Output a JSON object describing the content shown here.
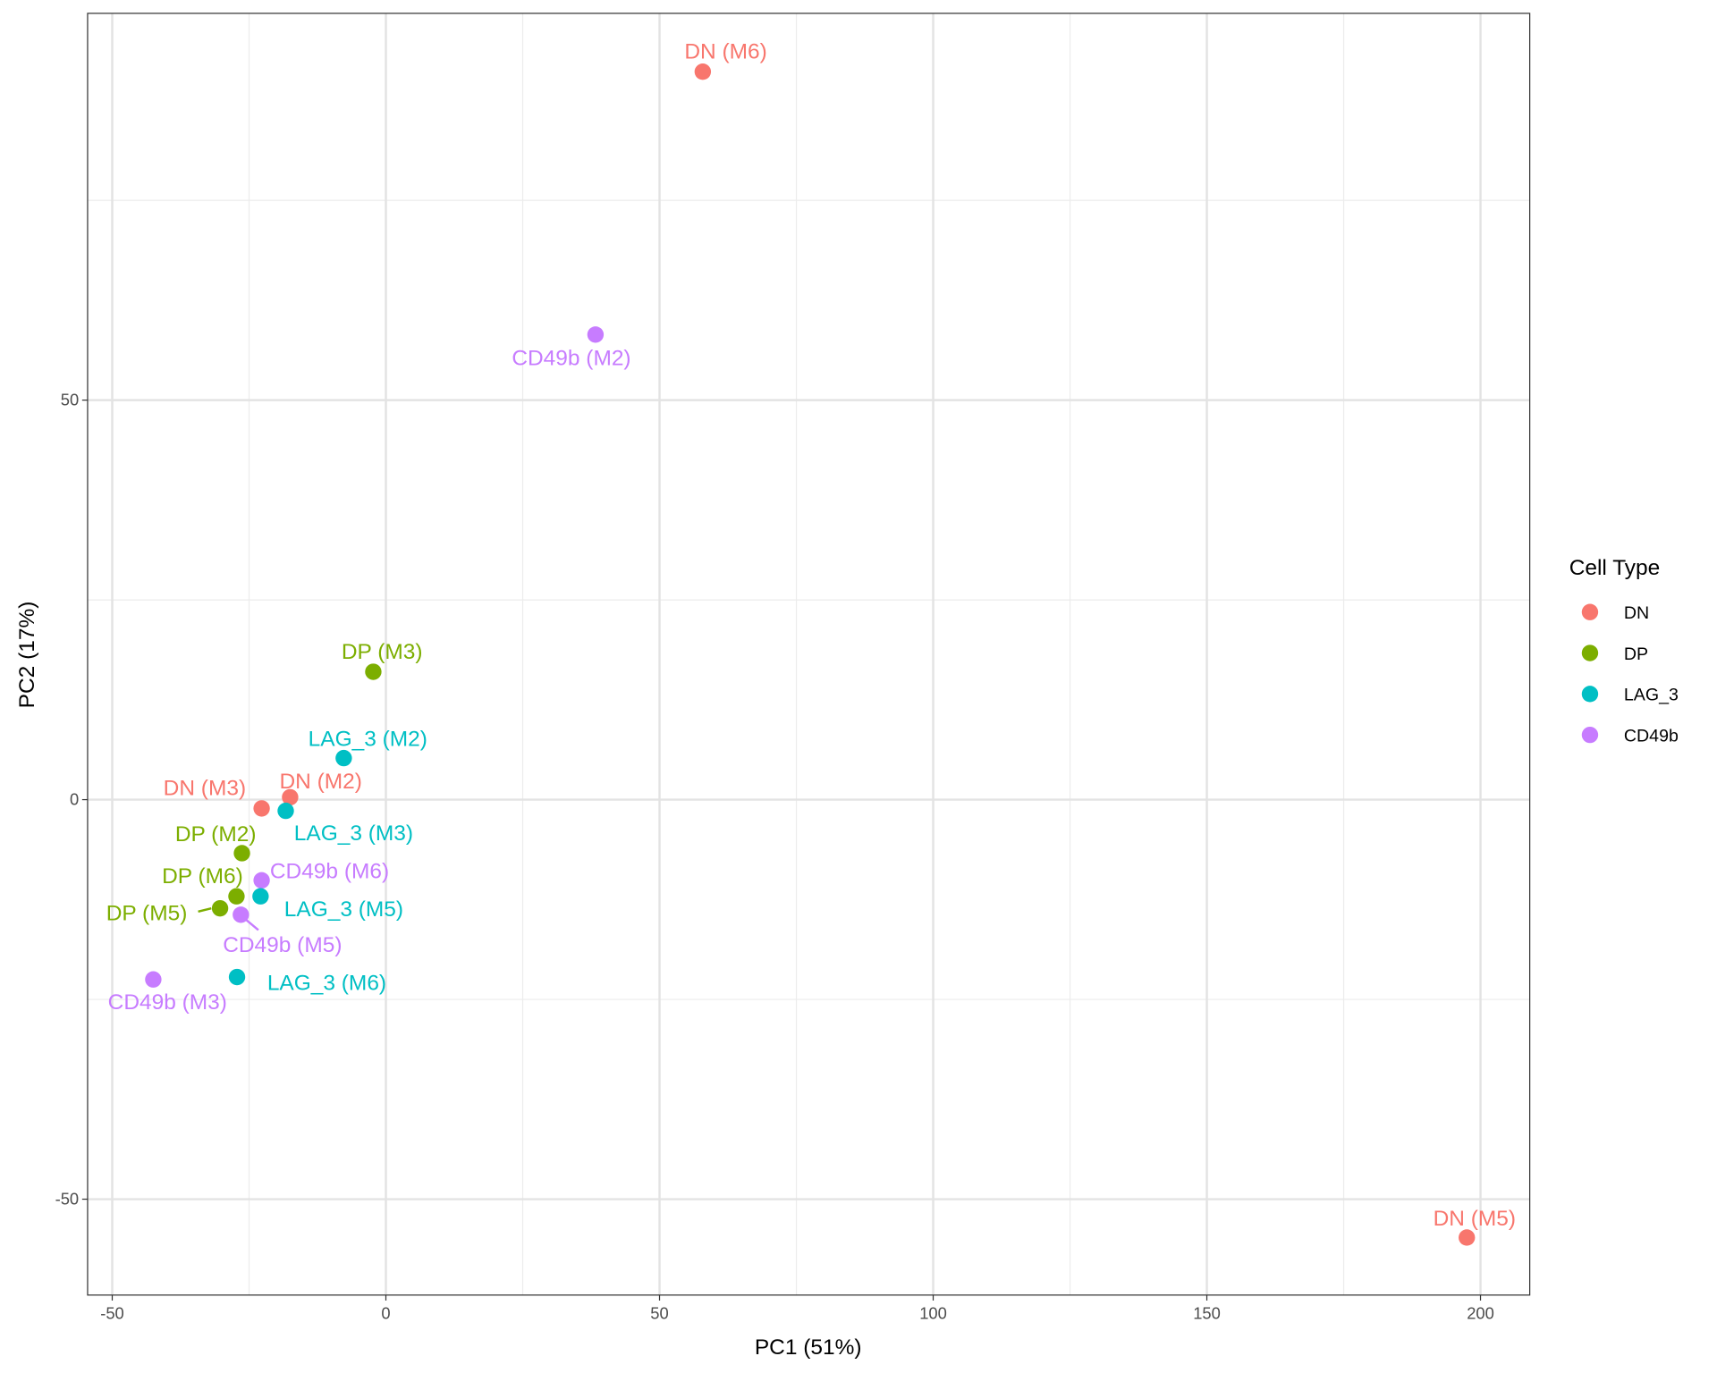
{
  "chart_data": {
    "type": "scatter",
    "xlabel": "PC1 (51%)",
    "ylabel": "PC2 (17%)",
    "xlim": [
      -54.5,
      209
    ],
    "ylim": [
      -62,
      98.4
    ],
    "x_ticks": [
      -50,
      0,
      50,
      100,
      150,
      200
    ],
    "y_ticks": [
      -50,
      0,
      50
    ],
    "grid": true,
    "legend": {
      "title": "Cell Type",
      "position": "right",
      "entries": [
        "DN",
        "DP",
        "LAG_3",
        "CD49b"
      ]
    },
    "colors": {
      "DN": "#F8766D",
      "DP": "#7CAE00",
      "LAG_3": "#00BFC4",
      "CD49b": "#C77CFF"
    },
    "points": [
      {
        "label": "DN (M6)",
        "group": "DN",
        "x": 57.9,
        "y": 91.1
      },
      {
        "label": "CD49b (M2)",
        "group": "CD49b",
        "x": 38.3,
        "y": 58.2
      },
      {
        "label": "DP (M3)",
        "group": "DP",
        "x": -2.3,
        "y": 16.0
      },
      {
        "label": "LAG_3 (M2)",
        "group": "LAG_3",
        "x": -7.7,
        "y": 5.2
      },
      {
        "label": "DN (M2)",
        "group": "DN",
        "x": -17.5,
        "y": 0.3
      },
      {
        "label": "DN (M3)",
        "group": "DN",
        "x": -22.7,
        "y": -1.1
      },
      {
        "label": "LAG_3 (M3)",
        "group": "LAG_3",
        "x": -18.3,
        "y": -1.4
      },
      {
        "label": "DP (M2)",
        "group": "DP",
        "x": -26.3,
        "y": -6.7
      },
      {
        "label": "CD49b (M6)",
        "group": "CD49b",
        "x": -22.7,
        "y": -10.1
      },
      {
        "label": "DP (M6)",
        "group": "DP",
        "x": -27.3,
        "y": -12.1
      },
      {
        "label": "LAG_3 (M5)",
        "group": "LAG_3",
        "x": -22.9,
        "y": -12.1
      },
      {
        "label": "DP (M5)",
        "group": "DP",
        "x": -30.3,
        "y": -13.6
      },
      {
        "label": "CD49b (M5)",
        "group": "CD49b",
        "x": -26.5,
        "y": -14.4
      },
      {
        "label": "LAG_3 (M6)",
        "group": "LAG_3",
        "x": -27.2,
        "y": -22.2
      },
      {
        "label": "CD49b (M3)",
        "group": "CD49b",
        "x": -42.5,
        "y": -22.5
      },
      {
        "label": "DN (M5)",
        "group": "DN",
        "x": 197.5,
        "y": -54.8
      }
    ]
  }
}
